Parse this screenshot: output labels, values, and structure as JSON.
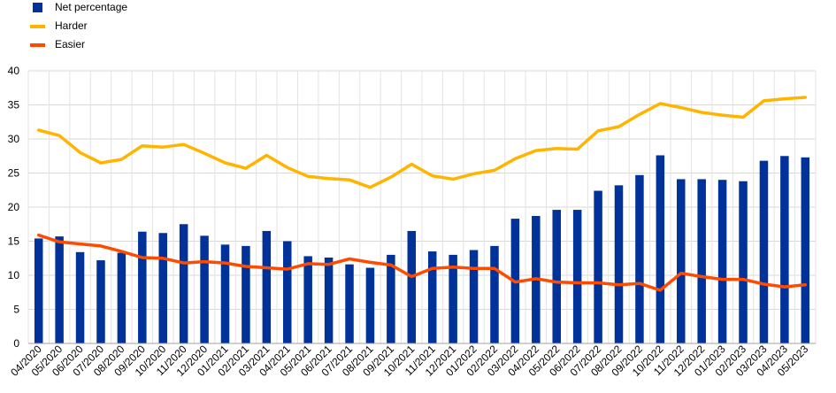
{
  "chart_data": {
    "type": "bar",
    "categories": [
      "04/2020",
      "05/2020",
      "06/2020",
      "07/2020",
      "08/2020",
      "09/2020",
      "10/2020",
      "11/2020",
      "12/2020",
      "01/2021",
      "02/2021",
      "03/2021",
      "04/2021",
      "05/2021",
      "06/2021",
      "07/2021",
      "08/2021",
      "09/2021",
      "10/2021",
      "11/2021",
      "12/2021",
      "01/2022",
      "02/2022",
      "03/2022",
      "04/2022",
      "05/2022",
      "06/2022",
      "07/2022",
      "08/2022",
      "09/2022",
      "10/2022",
      "11/2022",
      "12/2022",
      "01/2023",
      "02/2023",
      "03/2023",
      "04/2023",
      "05/2023"
    ],
    "series": [
      {
        "name": "Net percentage",
        "kind": "bar",
        "color": "#003299",
        "values": [
          15.4,
          15.7,
          13.4,
          12.2,
          13.3,
          16.4,
          16.2,
          17.5,
          15.8,
          14.5,
          14.3,
          16.5,
          15.0,
          12.8,
          12.6,
          11.6,
          11.1,
          13.0,
          16.5,
          13.5,
          13.0,
          13.7,
          14.3,
          18.3,
          18.7,
          19.6,
          19.6,
          22.4,
          23.2,
          24.7,
          27.6,
          24.1,
          24.1,
          24.0,
          23.8,
          26.8,
          27.5,
          27.3
        ]
      },
      {
        "name": "Harder",
        "kind": "line",
        "color": "#FFB400",
        "values": [
          31.3,
          30.5,
          28.0,
          26.5,
          27.0,
          29.0,
          28.8,
          29.2,
          27.9,
          26.5,
          25.7,
          27.6,
          25.8,
          24.5,
          24.2,
          24.0,
          22.9,
          24.4,
          26.3,
          24.6,
          24.1,
          24.9,
          25.4,
          27.1,
          28.3,
          28.6,
          28.5,
          31.2,
          31.8,
          33.6,
          35.2,
          34.6,
          33.9,
          33.5,
          33.2,
          35.6,
          35.9,
          36.1
        ]
      },
      {
        "name": "Easier",
        "kind": "line",
        "color": "#FF4B00",
        "values": [
          15.9,
          14.9,
          14.6,
          14.3,
          13.5,
          12.6,
          12.5,
          11.8,
          12.0,
          11.8,
          11.3,
          11.1,
          10.9,
          11.7,
          11.6,
          12.4,
          11.9,
          11.5,
          9.8,
          11.0,
          11.2,
          11.0,
          11.0,
          9.0,
          9.5,
          9.0,
          8.9,
          8.9,
          8.6,
          8.8,
          7.8,
          10.3,
          9.8,
          9.4,
          9.4,
          8.7,
          8.3,
          8.6
        ]
      }
    ],
    "ylim": [
      0,
      40
    ],
    "yticks": [
      0,
      5,
      10,
      15,
      20,
      25,
      30,
      35,
      40
    ],
    "grid": true,
    "legend_position": "top-left"
  }
}
